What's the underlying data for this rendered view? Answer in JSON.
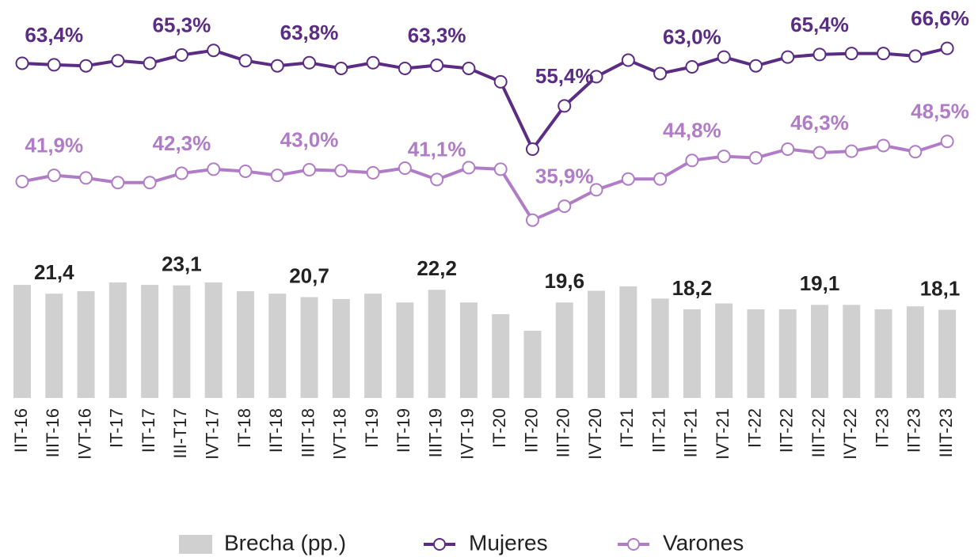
{
  "chart_data": {
    "type": "bar-line",
    "categories": [
      "IIT-16",
      "IIIT-16",
      "IVT-16",
      "IT-17",
      "IIT-17",
      "III-T17",
      "IVT-17",
      "IT-18",
      "IIT-18",
      "IIIT-18",
      "IVT-18",
      "IT-19",
      "IIT-19",
      "IIIT-19",
      "IVT-19",
      "IT-20",
      "IIT-20",
      "IIIT-20",
      "IVT-20",
      "IT-21",
      "IIT-21",
      "IIIT-21",
      "IVT-21",
      "IT-22",
      "IIT-22",
      "IIIT-22",
      "IVT-22",
      "IT-23",
      "IIT-23",
      "IIIT-23"
    ],
    "ylim": [
      30,
      70
    ],
    "y2lim": [
      0,
      25
    ],
    "series": [
      {
        "name": "Brecha (pp.)",
        "type": "bar",
        "axis": "y2",
        "color": "#d0d0d0",
        "label_color": "#222222",
        "values": [
          23.2,
          21.4,
          21.9,
          23.7,
          23.2,
          23.1,
          23.7,
          21.9,
          21.4,
          20.7,
          20.3,
          21.4,
          19.6,
          22.2,
          19.6,
          17.2,
          13.8,
          19.6,
          22.0,
          22.9,
          20.4,
          18.2,
          19.4,
          18.2,
          18.2,
          19.1,
          19.1,
          18.2,
          18.8,
          18.1
        ],
        "value_labels": [
          null,
          "21,4",
          null,
          null,
          null,
          "23,1",
          null,
          null,
          null,
          "20,7",
          null,
          null,
          null,
          "22,2",
          null,
          null,
          null,
          "19,6",
          null,
          null,
          null,
          "18,2",
          null,
          null,
          null,
          "19,1",
          null,
          null,
          null,
          "18,1"
        ]
      },
      {
        "name": "Mujeres",
        "type": "line",
        "color": "#5b2c83",
        "label_color": "#5b2c83",
        "values": [
          63.7,
          63.4,
          63.2,
          64.2,
          63.7,
          65.3,
          66.2,
          64.2,
          63.2,
          63.8,
          62.7,
          63.8,
          62.7,
          63.3,
          62.7,
          60.1,
          47.0,
          55.4,
          61.1,
          64.3,
          61.7,
          63.0,
          64.9,
          63.2,
          64.9,
          65.4,
          65.6,
          65.6,
          65.1,
          66.6
        ],
        "value_labels": [
          null,
          "63,4%",
          null,
          null,
          null,
          "65,3%",
          null,
          null,
          null,
          "63,8%",
          null,
          null,
          null,
          "63,3%",
          null,
          null,
          null,
          "55,4%",
          null,
          null,
          null,
          "63,0%",
          null,
          null,
          null,
          "65,4%",
          null,
          null,
          null,
          "66,6%"
        ]
      },
      {
        "name": "Varones",
        "type": "line",
        "color": "#b07cc6",
        "label_color": "#b07cc6",
        "values": [
          40.7,
          41.9,
          41.4,
          40.5,
          40.5,
          42.3,
          43.1,
          42.7,
          41.9,
          43.0,
          42.8,
          42.4,
          43.3,
          41.1,
          43.4,
          43.1,
          33.2,
          35.9,
          39.1,
          41.2,
          41.2,
          44.8,
          45.6,
          45.3,
          47.0,
          46.3,
          46.6,
          47.7,
          46.5,
          48.5
        ],
        "value_labels": [
          null,
          "41,9%",
          null,
          null,
          null,
          "42,3%",
          null,
          null,
          null,
          "43,0%",
          null,
          null,
          null,
          "41,1%",
          null,
          null,
          null,
          "35,9%",
          null,
          null,
          null,
          "44,8%",
          null,
          null,
          null,
          "46,3%",
          null,
          null,
          null,
          "48,5%"
        ]
      }
    ]
  }
}
